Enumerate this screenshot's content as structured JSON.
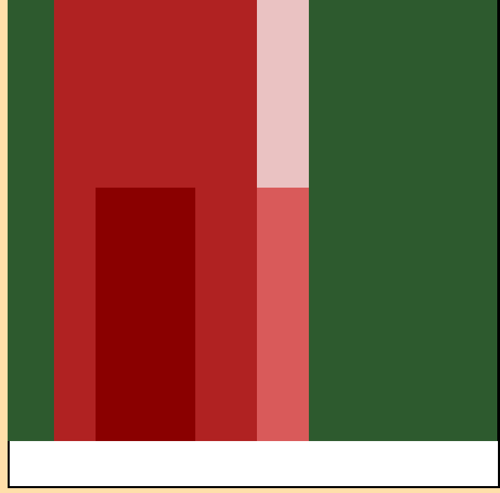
{
  "palette": {
    "page_background": "#ffdfaa",
    "green": "#2d5a2e",
    "red": "#b02222",
    "dark_red": "#8a0000",
    "light_pink": "#eac2c2",
    "salmon": "#d95a5a",
    "footer_fill": "#ffffff",
    "footer_border": "#000000"
  },
  "blocks": [
    {
      "name": "green-left-column",
      "color_key": "green"
    },
    {
      "name": "red-top-block",
      "color_key": "red"
    },
    {
      "name": "red-left-strip",
      "color_key": "red"
    },
    {
      "name": "dark-red-block",
      "color_key": "dark_red"
    },
    {
      "name": "red-middle-block",
      "color_key": "red"
    },
    {
      "name": "light-pink-block",
      "color_key": "light_pink"
    },
    {
      "name": "salmon-block",
      "color_key": "salmon"
    },
    {
      "name": "green-right-panel",
      "color_key": "green"
    }
  ]
}
